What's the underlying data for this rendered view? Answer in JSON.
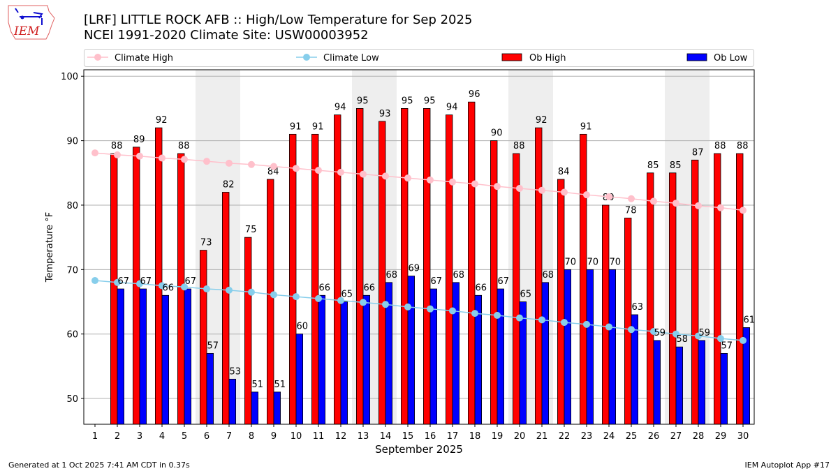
{
  "header": {
    "logo_text": "IEM",
    "title_line1": "[LRF] LITTLE ROCK AFB :: High/Low Temperature for Sep 2025",
    "title_line2": "NCEI 1991-2020 Climate Site: USW00003952"
  },
  "footer": {
    "left": "Generated at 1 Oct 2025 7:41 AM CDT in 0.37s",
    "right": "IEM Autoplot App #17"
  },
  "chart_data": {
    "type": "bar",
    "xlabel": "September 2025",
    "ylabel": "Temperature °F",
    "ylim": [
      46,
      101
    ],
    "xlim": [
      0.5,
      30.5
    ],
    "yticks": [
      50,
      60,
      70,
      80,
      90,
      100
    ],
    "grid": "y",
    "legend_placement": "top",
    "weekend_shading_days": [
      6,
      7,
      13,
      14,
      20,
      21,
      27,
      28
    ],
    "categories": [
      1,
      2,
      3,
      4,
      5,
      6,
      7,
      8,
      9,
      10,
      11,
      12,
      13,
      14,
      15,
      16,
      17,
      18,
      19,
      20,
      21,
      22,
      23,
      24,
      25,
      26,
      27,
      28,
      29,
      30
    ],
    "series": [
      {
        "name": "Climate High",
        "kind": "line",
        "color": "#ffc0cb",
        "values": [
          88.1,
          87.8,
          87.6,
          87.3,
          87.1,
          86.8,
          86.5,
          86.3,
          86.0,
          85.7,
          85.4,
          85.1,
          84.8,
          84.5,
          84.2,
          83.9,
          83.6,
          83.3,
          82.9,
          82.6,
          82.3,
          82.0,
          81.6,
          81.3,
          81.0,
          80.6,
          80.3,
          79.9,
          79.6,
          79.2
        ]
      },
      {
        "name": "Climate Low",
        "kind": "line",
        "color": "#87ceeb",
        "values": [
          68.3,
          68.0,
          67.8,
          67.5,
          67.3,
          67.0,
          66.8,
          66.5,
          66.1,
          65.8,
          65.5,
          65.2,
          64.9,
          64.6,
          64.2,
          63.9,
          63.6,
          63.2,
          62.9,
          62.5,
          62.2,
          61.8,
          61.5,
          61.1,
          60.7,
          60.4,
          60.0,
          59.7,
          59.3,
          59.0
        ]
      },
      {
        "name": "Ob High",
        "kind": "bar",
        "color": "#ff0000",
        "values": [
          null,
          88,
          89,
          92,
          88,
          73,
          82,
          75,
          84,
          91,
          91,
          94,
          95,
          93,
          95,
          95,
          94,
          96,
          90,
          88,
          92,
          84,
          91,
          80,
          78,
          85,
          85,
          87,
          88,
          88
        ]
      },
      {
        "name": "Ob Low",
        "kind": "bar",
        "color": "#0000ff",
        "values": [
          null,
          67,
          67,
          66,
          67,
          57,
          53,
          51,
          51,
          60,
          66,
          65,
          66,
          68,
          69,
          67,
          68,
          66,
          67,
          65,
          68,
          70,
          70,
          70,
          63,
          59,
          58,
          59,
          57,
          61
        ]
      }
    ]
  }
}
